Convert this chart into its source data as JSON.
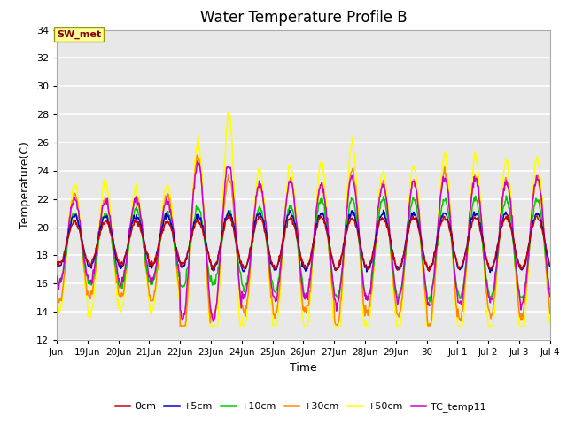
{
  "title": "Water Temperature Profile B",
  "xlabel": "Time",
  "ylabel": "Temperature(C)",
  "ylim": [
    12,
    34
  ],
  "yticks": [
    12,
    14,
    16,
    18,
    20,
    22,
    24,
    26,
    28,
    30,
    32,
    34
  ],
  "xlabels": [
    "Jun",
    "19Jun",
    "20Jun",
    "21Jun",
    "22Jun",
    "23Jun",
    "24Jun",
    "25Jun",
    "26Jun",
    "27Jun",
    "28Jun",
    "29Jun",
    "30",
    "Jul 1",
    "Jul 2",
    "Jul 3",
    "Jul 4"
  ],
  "series_colors": {
    "0cm": "#cc0000",
    "+5cm": "#0000cc",
    "+10cm": "#00cc00",
    "+30cm": "#ff8800",
    "+50cm": "#ffff00",
    "TC_temp11": "#cc00cc"
  },
  "legend_label": "SW_met",
  "legend_box_facecolor": "#ffff99",
  "legend_box_edgecolor": "#999900",
  "legend_text_color": "#880000",
  "plot_bg_color": "#e8e8e8",
  "grid_color": "#ffffff",
  "title_fontsize": 12,
  "axis_fontsize": 9,
  "tick_fontsize": 8
}
